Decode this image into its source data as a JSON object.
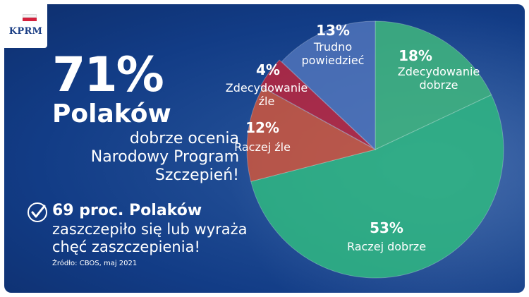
{
  "logo": {
    "text": "KPRM"
  },
  "headline": {
    "percent": "71%",
    "who": "Polaków",
    "sub_lines": [
      "dobrze ocenia",
      "Narodowy Program",
      "Szczepień!"
    ]
  },
  "secondary": {
    "title": "69 proc. Polaków",
    "sub_lines": [
      "zaszczepiło się lub wyraża",
      "chęć zaszczepienia!"
    ]
  },
  "source": "Źródło: CBOS, maj 2021",
  "chart_data": {
    "type": "pie",
    "slices": [
      {
        "value": 18,
        "percent_label": "18%",
        "label_lines": [
          "Zdecydowanie",
          "dobrze"
        ],
        "color": "#3fb47e"
      },
      {
        "value": 53,
        "percent_label": "53%",
        "label_lines": [
          "Raczej dobrze"
        ],
        "color": "#2fb582"
      },
      {
        "value": 12,
        "percent_label": "12%",
        "label_lines": [
          "Raczej źle"
        ],
        "color": "#c9553f"
      },
      {
        "value": 4,
        "percent_label": "4%",
        "label_lines": [
          "Zdecydowanie",
          "źle"
        ],
        "color": "#b7263f"
      },
      {
        "value": 13,
        "percent_label": "13%",
        "label_lines": [
          "Trudno",
          "powiedzieć"
        ],
        "color": "#4d72b8"
      }
    ]
  }
}
